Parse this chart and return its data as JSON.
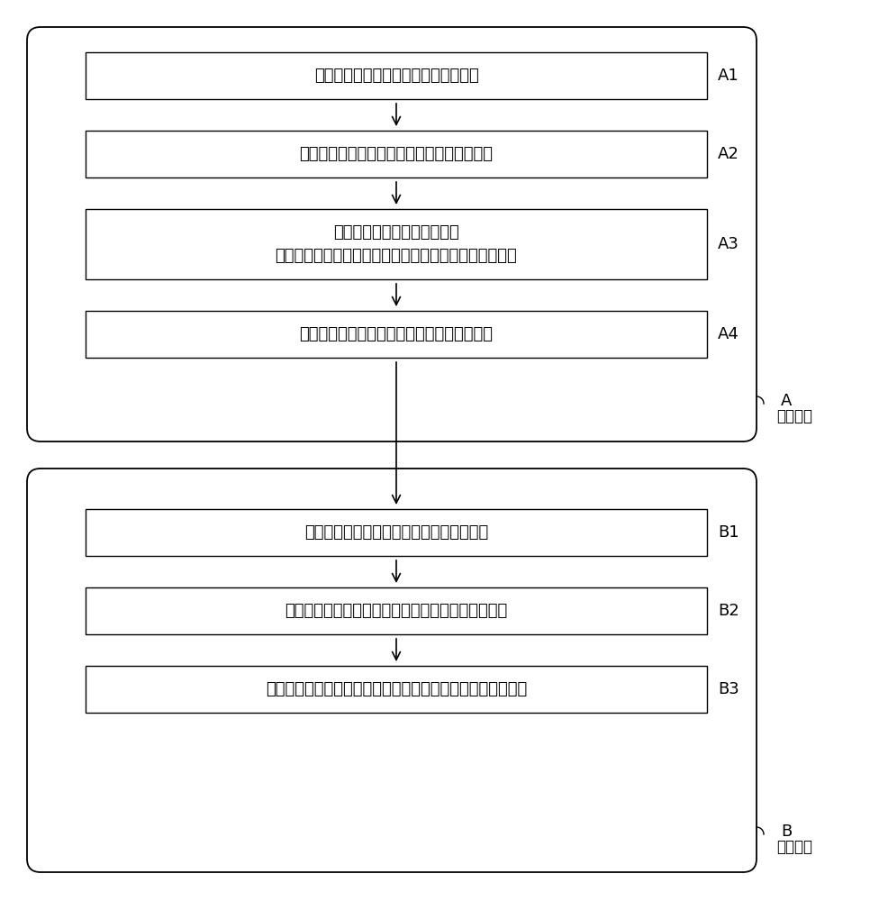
{
  "background_color": "#ffffff",
  "box_edge_color": "#000000",
  "text_color": "#000000",
  "arrow_color": "#000000",
  "boxes_A": [
    {
      "id": "A1",
      "text": "对训练指纹图像进行基准方向场的标定",
      "multiline": false
    },
    {
      "id": "A2",
      "text": "对基准方向场进行提取，获得基准方向场模板",
      "multiline": false
    },
    {
      "id": "A3",
      "text": "对基准方向场模板进行聚类，\n并对每类模板在指纹的不同位置出现的概率分布进行估计",
      "multiline": true
    },
    {
      "id": "A4",
      "text": "建立所述基准方向场模板与参考点分布的映射",
      "multiline": false
    }
  ],
  "boxes_B": [
    {
      "id": "B1",
      "text": "对输入的现场指纹图片进行初始方向场提取",
      "multiline": false
    },
    {
      "id": "B2",
      "text": "对提取到的初始方向场进行参考点和参考方向的估计",
      "multiline": false
    },
    {
      "id": "B3",
      "text": "基于参考点和参考方向的估计结果，对现场指纹图片进行校正",
      "multiline": false
    }
  ],
  "label_A": "A",
  "sublabel_A": "离线阶段",
  "label_B": "B",
  "sublabel_B": "在线阶段",
  "font_size_box": 13,
  "font_size_label": 13,
  "font_size_section": 12
}
